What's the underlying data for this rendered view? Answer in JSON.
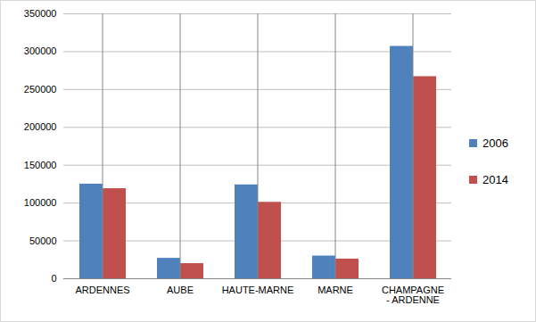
{
  "chart_data": {
    "type": "bar",
    "categories": [
      "ARDENNES",
      "AUBE",
      "HAUTE-MARNE",
      "MARNE",
      "CHAMPAGNE - ARDENNE"
    ],
    "series": [
      {
        "name": "2006",
        "color": "#4f81bd",
        "values": [
          125000,
          27000,
          124000,
          30000,
          307000
        ]
      },
      {
        "name": "2014",
        "color": "#c0504d",
        "values": [
          119000,
          20000,
          101000,
          26000,
          267000
        ]
      }
    ],
    "ylim": [
      0,
      350000
    ],
    "yticks": [
      0,
      50000,
      100000,
      150000,
      200000,
      250000,
      300000,
      350000
    ],
    "grid": true,
    "legend": "right"
  }
}
